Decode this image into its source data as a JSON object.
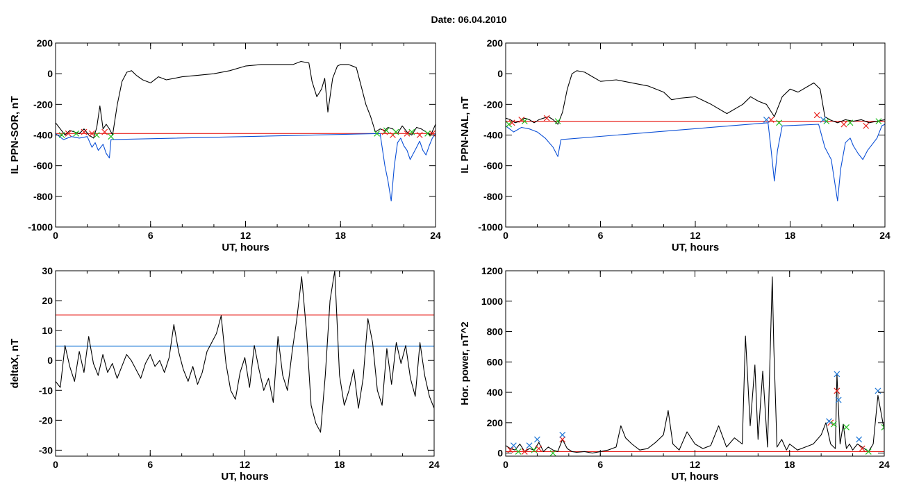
{
  "page": {
    "title": "Date:  06.04.2010"
  },
  "colors": {
    "trace": "#000000",
    "blue": "#0a4fd6",
    "red": "#e8231e",
    "green": "#1fbf1f",
    "cyan_line": "#1f7ad6",
    "marker_blue": "#1f77d6"
  },
  "chart_data": [
    {
      "id": "sor",
      "type": "line",
      "title": "",
      "xlabel": "UT, hours",
      "ylabel": "IL PPN-SOR, nT",
      "xlim": [
        0,
        24
      ],
      "ylim": [
        -1000,
        200
      ],
      "xticks": [
        0,
        6,
        12,
        18,
        24
      ],
      "yticks": [
        200,
        0,
        -200,
        -400,
        -600,
        -800,
        -1000
      ],
      "grid": false,
      "threshold": {
        "value": -390,
        "color": "red"
      },
      "series": [
        {
          "color": "black",
          "x": [
            0,
            0.3,
            0.6,
            0.9,
            1.2,
            1.5,
            1.8,
            2.1,
            2.4,
            2.6,
            2.8,
            3.0,
            3.2,
            3.4,
            3.6,
            3.9,
            4.2,
            4.5,
            4.8,
            5.1,
            5.5,
            6.0,
            6.5,
            7.0,
            7.5,
            8,
            9,
            10,
            11,
            12,
            13,
            14,
            15,
            15.5,
            16,
            16.2,
            16.5,
            16.8,
            17.0,
            17.2,
            17.5,
            17.8,
            18.0,
            18.5,
            19.0,
            19.3,
            19.6,
            19.9,
            20.2,
            20.5,
            20.8,
            21.0,
            21.3,
            21.6,
            21.9,
            22.2,
            22.5,
            22.8,
            23.1,
            23.4,
            23.7,
            24
          ],
          "y": [
            -320,
            -360,
            -400,
            -370,
            -380,
            -390,
            -360,
            -400,
            -420,
            -350,
            -210,
            -360,
            -330,
            -360,
            -400,
            -200,
            -50,
            10,
            20,
            -10,
            -40,
            -60,
            -20,
            -40,
            -30,
            -20,
            -10,
            0,
            20,
            50,
            60,
            60,
            60,
            80,
            70,
            -50,
            -150,
            -100,
            -30,
            -250,
            -30,
            50,
            60,
            60,
            40,
            -80,
            -200,
            -280,
            -380,
            -360,
            -370,
            -350,
            -360,
            -390,
            -340,
            -380,
            -400,
            -350,
            -360,
            -380,
            -400,
            -330
          ]
        },
        {
          "color": "blue",
          "x": [
            0.0,
            0.5,
            1.0,
            1.5,
            2.0,
            2.3,
            2.5,
            2.7,
            3.0,
            3.2,
            3.4,
            3.5,
            20.5,
            20.8,
            21.0,
            21.2,
            21.4,
            21.6,
            21.8,
            22.0,
            22.2,
            22.4,
            22.6,
            22.8,
            23.0,
            23.2,
            23.4,
            23.6,
            23.8,
            24.0
          ],
          "y": [
            -390,
            -430,
            -410,
            -420,
            -410,
            -480,
            -450,
            -500,
            -460,
            -520,
            -550,
            -430,
            -390,
            -600,
            -700,
            -830,
            -600,
            -450,
            -420,
            -470,
            -500,
            -560,
            -520,
            -480,
            -440,
            -500,
            -530,
            -470,
            -420,
            -390
          ]
        }
      ],
      "markers": {
        "red": [
          [
            0.8,
            -390
          ],
          [
            1.8,
            -380
          ],
          [
            2.3,
            -390
          ],
          [
            3.1,
            -380
          ],
          [
            20.8,
            -380
          ],
          [
            21.3,
            -400
          ],
          [
            22.2,
            -390
          ],
          [
            23.0,
            -400
          ],
          [
            23.8,
            -390
          ]
        ],
        "green": [
          [
            0.4,
            -400
          ],
          [
            1.3,
            -390
          ],
          [
            2.6,
            -400
          ],
          [
            3.5,
            -410
          ],
          [
            20.3,
            -390
          ],
          [
            20.9,
            -370
          ],
          [
            21.5,
            -380
          ],
          [
            22.5,
            -380
          ],
          [
            23.5,
            -390
          ]
        ]
      }
    },
    {
      "id": "nal",
      "type": "line",
      "title": "",
      "xlabel": "UT, hours",
      "ylabel": "IL PPN-NAL, nT",
      "xlim": [
        0,
        24
      ],
      "ylim": [
        -1000,
        200
      ],
      "xticks": [
        0,
        6,
        12,
        18,
        24
      ],
      "yticks": [
        200,
        0,
        -200,
        -400,
        -600,
        -800,
        -1000
      ],
      "grid": false,
      "threshold": {
        "value": -310,
        "color": "red"
      },
      "series": [
        {
          "color": "black",
          "x": [
            0,
            0.3,
            0.6,
            0.9,
            1.2,
            1.5,
            1.8,
            2.1,
            2.4,
            2.7,
            3.0,
            3.3,
            3.6,
            3.9,
            4.2,
            4.5,
            5.0,
            5.5,
            6.0,
            7.0,
            8.0,
            9.0,
            10.0,
            10.5,
            11.0,
            12.0,
            13.0,
            14.0,
            15.0,
            15.5,
            16.0,
            16.5,
            17.0,
            17.5,
            18.0,
            18.5,
            19.0,
            19.5,
            19.9,
            20.2,
            20.5,
            21.0,
            21.5,
            22.0,
            22.5,
            23.0,
            23.5,
            24.0
          ],
          "y": [
            -290,
            -300,
            -320,
            -310,
            -290,
            -300,
            -320,
            -300,
            -290,
            -280,
            -300,
            -330,
            -250,
            -100,
            0,
            20,
            10,
            -20,
            -50,
            -40,
            -60,
            -80,
            -120,
            -170,
            -160,
            -150,
            -200,
            -260,
            -200,
            -150,
            -180,
            -200,
            -280,
            -150,
            -100,
            -120,
            -90,
            -60,
            -100,
            -280,
            -300,
            -320,
            -300,
            -310,
            -300,
            -320,
            -310,
            -300
          ]
        },
        {
          "color": "blue",
          "x": [
            0,
            0.5,
            1.0,
            1.5,
            2.0,
            2.5,
            3.0,
            3.3,
            3.5,
            16.6,
            16.8,
            17.0,
            17.2,
            17.5,
            19.8,
            20.2,
            20.6,
            21.0,
            21.2,
            21.5,
            21.8,
            22.0,
            22.3,
            22.6,
            22.9,
            23.2,
            23.5,
            23.8,
            24.0
          ],
          "y": [
            -340,
            -380,
            -350,
            -360,
            -380,
            -420,
            -480,
            -540,
            -430,
            -320,
            -500,
            -700,
            -500,
            -340,
            -330,
            -480,
            -560,
            -830,
            -620,
            -450,
            -420,
            -470,
            -520,
            -560,
            -500,
            -460,
            -420,
            -340,
            -330
          ]
        }
      ],
      "markers": {
        "red": [
          [
            0.4,
            -320
          ],
          [
            1.0,
            -300
          ],
          [
            2.6,
            -290
          ],
          [
            16.8,
            -300
          ],
          [
            19.7,
            -270
          ],
          [
            21.4,
            -330
          ],
          [
            22.8,
            -340
          ]
        ],
        "green": [
          [
            0.2,
            -330
          ],
          [
            1.2,
            -310
          ],
          [
            3.3,
            -310
          ],
          [
            17.3,
            -320
          ],
          [
            20.3,
            -310
          ],
          [
            21.8,
            -320
          ],
          [
            23.6,
            -310
          ]
        ],
        "blue": [
          [
            16.5,
            -300
          ],
          [
            20.1,
            -300
          ]
        ]
      }
    },
    {
      "id": "deltax",
      "type": "line",
      "title": "",
      "xlabel": "UT, hours",
      "ylabel": "deltaX, nT",
      "xlim": [
        0,
        24
      ],
      "ylim": [
        -32,
        30
      ],
      "xticks": [
        0,
        6,
        12,
        18,
        24
      ],
      "yticks": [
        30,
        20,
        10,
        0,
        -10,
        -20,
        -30
      ],
      "grid": false,
      "thresholds": [
        {
          "value": 15.2,
          "color": "red"
        },
        {
          "value": 4.8,
          "color": "blue"
        }
      ],
      "series": [
        {
          "color": "black",
          "x": [
            0,
            0.3,
            0.6,
            0.9,
            1.2,
            1.5,
            1.8,
            2.1,
            2.4,
            2.7,
            3.0,
            3.3,
            3.6,
            3.9,
            4.2,
            4.5,
            4.8,
            5.1,
            5.4,
            5.7,
            6.0,
            6.3,
            6.6,
            6.9,
            7.2,
            7.5,
            7.8,
            8.1,
            8.4,
            8.7,
            9.0,
            9.3,
            9.6,
            9.9,
            10.2,
            10.5,
            10.8,
            11.1,
            11.4,
            11.7,
            12.0,
            12.3,
            12.6,
            12.9,
            13.2,
            13.5,
            13.8,
            14.1,
            14.4,
            14.7,
            15.0,
            15.3,
            15.6,
            15.9,
            16.2,
            16.5,
            16.8,
            17.1,
            17.4,
            17.7,
            18.0,
            18.3,
            18.6,
            18.9,
            19.2,
            19.5,
            19.8,
            20.1,
            20.4,
            20.7,
            21.0,
            21.3,
            21.6,
            21.9,
            22.2,
            22.5,
            22.8,
            23.1,
            23.4,
            23.7,
            24.0
          ],
          "y": [
            -7,
            -9,
            5,
            -2,
            -7,
            3,
            -4,
            8,
            -1,
            -5,
            2,
            -4,
            -1,
            -6,
            -2,
            2,
            0,
            -3,
            -6,
            -1,
            2,
            -2,
            0,
            -4,
            1,
            12,
            3,
            -3,
            -7,
            -2,
            -8,
            -4,
            3,
            6,
            9,
            15,
            -1,
            -10,
            -13,
            -4,
            1,
            -9,
            5,
            -3,
            -10,
            -6,
            -14,
            8,
            -5,
            -10,
            3,
            14,
            28,
            10,
            -15,
            -21,
            -24,
            -5,
            20,
            30,
            -5,
            -15,
            -10,
            -3,
            -16,
            -6,
            14,
            6,
            -10,
            -15,
            4,
            -8,
            6,
            -1,
            5,
            -6,
            -12,
            6,
            -5,
            -12,
            -16
          ]
        }
      ]
    },
    {
      "id": "power",
      "type": "line",
      "title": "",
      "xlabel": "UT, hours",
      "ylabel": "Hor. power, nT^2",
      "xlim": [
        0,
        24
      ],
      "ylim": [
        -20,
        1200
      ],
      "xticks": [
        0,
        6,
        12,
        18,
        24
      ],
      "yticks": [
        1200,
        1000,
        800,
        600,
        400,
        200,
        0
      ],
      "grid": false,
      "threshold": {
        "value": 10,
        "color": "red"
      },
      "series": [
        {
          "color": "black",
          "x": [
            0,
            0.3,
            0.6,
            0.9,
            1.2,
            1.5,
            1.8,
            2.1,
            2.4,
            2.7,
            3.0,
            3.3,
            3.6,
            3.9,
            4.2,
            4.5,
            5.0,
            5.5,
            6.0,
            6.5,
            7.0,
            7.3,
            7.6,
            8.0,
            8.5,
            9.0,
            9.5,
            10.0,
            10.3,
            10.6,
            11.0,
            11.5,
            12.0,
            12.5,
            13.0,
            13.5,
            14.0,
            14.5,
            15.0,
            15.2,
            15.5,
            15.8,
            16.0,
            16.3,
            16.6,
            16.9,
            17.0,
            17.2,
            17.5,
            17.8,
            18.0,
            18.5,
            19.0,
            19.5,
            20.0,
            20.3,
            20.6,
            20.9,
            21.0,
            21.2,
            21.4,
            21.6,
            21.8,
            22.0,
            22.3,
            22.6,
            23.0,
            23.3,
            23.6,
            24.0
          ],
          "y": [
            50,
            30,
            20,
            60,
            10,
            30,
            20,
            70,
            10,
            40,
            20,
            10,
            90,
            30,
            10,
            5,
            10,
            0,
            10,
            20,
            40,
            180,
            100,
            60,
            20,
            30,
            70,
            120,
            280,
            60,
            20,
            140,
            60,
            30,
            50,
            180,
            40,
            100,
            60,
            770,
            180,
            580,
            90,
            540,
            40,
            1160,
            700,
            40,
            90,
            20,
            60,
            20,
            40,
            60,
            120,
            200,
            60,
            30,
            520,
            60,
            190,
            30,
            60,
            20,
            60,
            40,
            10,
            60,
            380,
            150
          ]
        }
      ],
      "markers": {
        "red": [
          [
            0.3,
            20
          ],
          [
            1.2,
            10
          ],
          [
            2.1,
            30
          ],
          [
            3.6,
            90
          ],
          [
            20.6,
            200
          ],
          [
            21.0,
            410
          ],
          [
            22.6,
            30
          ]
        ],
        "blue": [
          [
            0.5,
            50
          ],
          [
            1.5,
            50
          ],
          [
            2.0,
            90
          ],
          [
            3.6,
            120
          ],
          [
            20.5,
            210
          ],
          [
            21.0,
            520
          ],
          [
            21.1,
            350
          ],
          [
            22.4,
            90
          ],
          [
            23.6,
            410
          ]
        ],
        "green": [
          [
            0.8,
            10
          ],
          [
            1.8,
            20
          ],
          [
            3.0,
            0
          ],
          [
            20.8,
            190
          ],
          [
            21.6,
            170
          ],
          [
            23.0,
            10
          ],
          [
            24.0,
            170
          ]
        ]
      }
    }
  ]
}
